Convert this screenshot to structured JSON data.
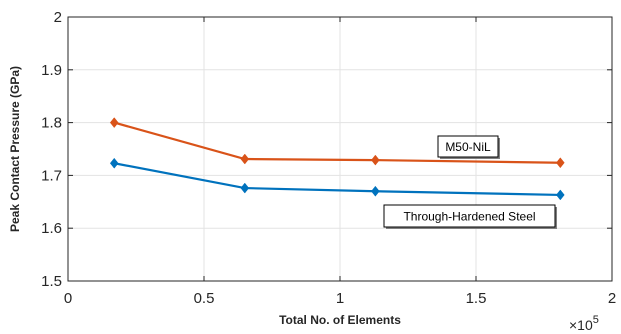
{
  "chart_data": {
    "type": "line",
    "xlabel": "Total No. of Elements",
    "ylabel": "Peak Contact Pressure (GPa)",
    "x_exponent_label": "×10",
    "x_exponent_power": "5",
    "xlim": [
      0,
      200000
    ],
    "ylim": [
      1.5,
      2.0
    ],
    "x_ticks": [
      0,
      50000,
      100000,
      150000,
      200000
    ],
    "x_tick_labels": [
      "0",
      "0.5",
      "1",
      "1.5",
      "2"
    ],
    "y_ticks": [
      1.5,
      1.6,
      1.7,
      1.8,
      1.9,
      2.0
    ],
    "y_tick_labels": [
      "1.5",
      "1.6",
      "1.7",
      "1.8",
      "1.9",
      "2"
    ],
    "grid": true,
    "series": [
      {
        "name": "M50-NiL",
        "color": "#d95319",
        "marker": "diamond",
        "x": [
          17000,
          65000,
          113000,
          181000
        ],
        "y": [
          1.8,
          1.731,
          1.729,
          1.724
        ]
      },
      {
        "name": "Through-Hardened Steel",
        "color": "#0072bd",
        "marker": "diamond",
        "x": [
          17000,
          65000,
          113000,
          181000
        ],
        "y": [
          1.723,
          1.676,
          1.67,
          1.663
        ]
      }
    ],
    "annotations": [
      {
        "text": "M50-NiL",
        "series": 0
      },
      {
        "text": "Through-Hardened Steel",
        "series": 1
      }
    ]
  }
}
